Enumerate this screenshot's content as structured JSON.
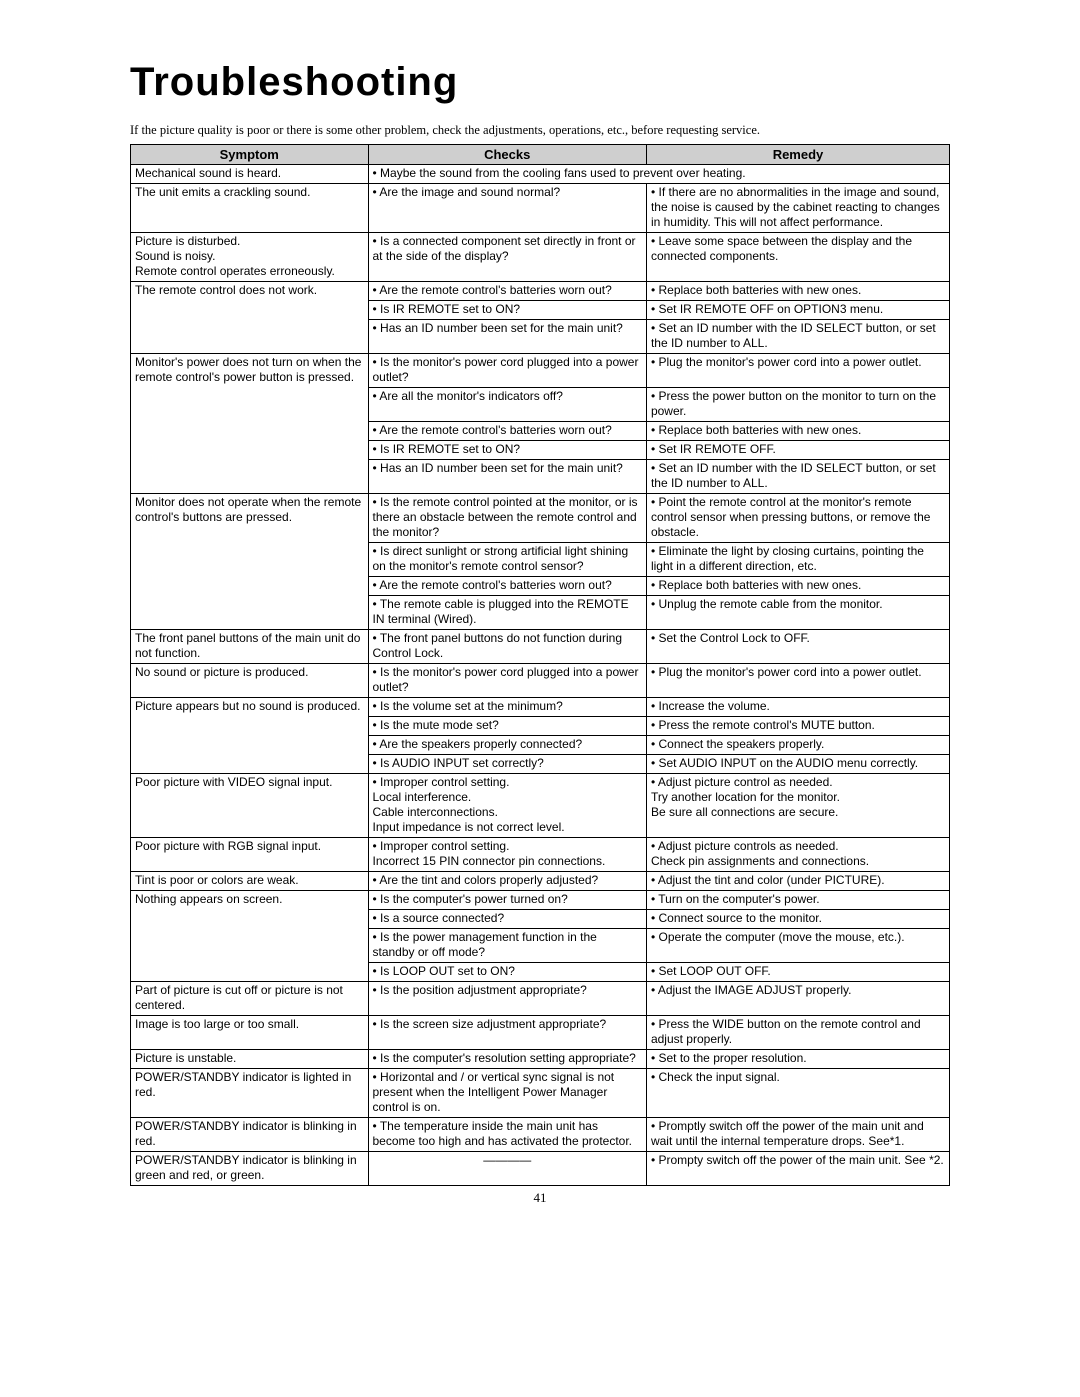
{
  "title": "Troubleshooting",
  "intro": "If the picture quality is poor or there is some other problem, check the adjustments, operations, etc., before requesting service.",
  "columns": [
    "Symptom",
    "Checks",
    "Remedy"
  ],
  "page_number": "41",
  "rows": [
    {
      "symptom": "Mechanical sound is heard.",
      "merged": "• Maybe the sound from the cooling fans used to prevent over heating."
    },
    {
      "symptom": "The unit emits a crackling sound.",
      "check": "• Are the image and sound normal?",
      "remedy": "• If there are no abnormalities in the image and sound, the noise is caused by the cabinet reacting to changes in humidity. This will not affect performance."
    },
    {
      "symptom": "Picture is disturbed.\nSound is noisy.\nRemote control operates erroneously.",
      "check": "• Is a connected component set directly in front or at the side of the display?",
      "remedy": "• Leave some space between the display and the connected components."
    },
    {
      "symptom": "The remote control does not work.",
      "sub": [
        {
          "check": "• Are the remote control's batteries worn out?",
          "remedy": "• Replace both batteries with new ones."
        },
        {
          "check": "• Is IR REMOTE set to ON?",
          "remedy": "• Set IR REMOTE OFF on OPTION3 menu."
        },
        {
          "check": "• Has an ID number been set for the main unit?",
          "remedy": "• Set an ID number with the ID SELECT button, or set the ID number to ALL."
        }
      ]
    },
    {
      "symptom": "Monitor's power does not turn on when the remote control's power button is pressed.",
      "sub": [
        {
          "check": "• Is the monitor's power cord plugged into a power outlet?",
          "remedy": "• Plug the monitor's power cord into a power outlet."
        },
        {
          "check": "• Are all the monitor's indicators off?",
          "remedy": "• Press the power button on the monitor to turn on the power."
        },
        {
          "check": "• Are the remote control's batteries worn out?",
          "remedy": "• Replace both batteries with new ones."
        },
        {
          "check": "• Is IR REMOTE set to ON?",
          "remedy": "• Set IR REMOTE OFF."
        },
        {
          "check": "• Has an ID number been set for the main unit?",
          "remedy": "• Set an ID number with the ID SELECT button, or set the ID number to ALL."
        }
      ]
    },
    {
      "symptom": "Monitor does not operate when the remote control's buttons are pressed.",
      "sub": [
        {
          "check": "• Is the remote control pointed at the monitor, or is there an obstacle between the remote control and the monitor?",
          "remedy": "• Point the remote control at the monitor's remote control sensor when pressing buttons, or remove the obstacle."
        },
        {
          "check": "• Is direct sunlight or strong artificial light shining on the monitor's remote control sensor?",
          "remedy": "• Eliminate the light by closing curtains, pointing the light in a different direction, etc."
        },
        {
          "check": "• Are the remote control's batteries worn out?",
          "remedy": "• Replace both batteries with new ones."
        },
        {
          "check": "• The remote cable is plugged into the REMOTE IN terminal (Wired).",
          "remedy": "• Unplug the remote cable from the monitor."
        }
      ]
    },
    {
      "symptom": "The front panel buttons of the main unit do not function.",
      "check": "• The front panel buttons do not function during Control Lock.",
      "remedy": "• Set the Control Lock to OFF."
    },
    {
      "symptom": "No sound or picture is produced.",
      "check": "• Is the monitor's power cord plugged into a power outlet?",
      "remedy": "• Plug the monitor's power cord into a power outlet."
    },
    {
      "symptom": "Picture appears but no sound is produced.",
      "sub": [
        {
          "check": "• Is the volume set at the minimum?",
          "remedy": "• Increase the volume."
        },
        {
          "check": "• Is the mute mode set?",
          "remedy": "• Press the remote control's MUTE button."
        },
        {
          "check": "• Are the speakers properly connected?",
          "remedy": "• Connect the speakers properly."
        },
        {
          "check": "• Is AUDIO INPUT set correctly?",
          "remedy": "• Set AUDIO INPUT on the AUDIO menu correctly."
        }
      ]
    },
    {
      "symptom": "Poor picture with VIDEO signal input.",
      "check": "• Improper control setting.\nLocal interference.\nCable interconnections.\nInput impedance is not correct level.",
      "remedy": "• Adjust picture control as needed.\nTry another location for the monitor.\nBe sure all connections are secure."
    },
    {
      "symptom": "Poor picture with RGB signal input.",
      "check": "• Improper control setting.\nIncorrect 15 PIN connector pin connections.",
      "remedy": "• Adjust picture controls as needed.\nCheck pin assignments and connections."
    },
    {
      "symptom": "Tint is poor or colors are weak.",
      "check": "• Are the tint and colors properly adjusted?",
      "remedy": "• Adjust the tint and color (under PICTURE)."
    },
    {
      "symptom": "Nothing appears on screen.",
      "sub": [
        {
          "check": "• Is the computer's power turned on?",
          "remedy": "• Turn on the computer's power."
        },
        {
          "check": "• Is a source connected?",
          "remedy": "• Connect source to the monitor."
        },
        {
          "check": "• Is the power management function in the standby or off mode?",
          "remedy": "• Operate the computer (move the mouse, etc.)."
        },
        {
          "check": "• Is LOOP OUT set to ON?",
          "remedy": "• Set LOOP OUT OFF."
        }
      ]
    },
    {
      "symptom": "Part of picture is cut off or picture is not centered.",
      "check": "• Is the position adjustment appropriate?",
      "remedy": "• Adjust the IMAGE ADJUST properly."
    },
    {
      "symptom": "Image is too large or too small.",
      "check": "• Is the screen size adjustment appropriate?",
      "remedy": "• Press the WIDE button on the remote control and adjust properly."
    },
    {
      "symptom": "Picture is unstable.",
      "check": "• Is the computer's resolution setting appropriate?",
      "remedy": "• Set to the proper resolution."
    },
    {
      "symptom": "POWER/STANDBY indicator is lighted in red.",
      "check": "• Horizontal and / or vertical sync signal is not present when the Intelligent Power Manager control is on.",
      "remedy": "• Check the input signal."
    },
    {
      "symptom": "POWER/STANDBY indicator is blinking in red.",
      "check": "• The temperature inside the main unit has become too high and has activated the protector.",
      "remedy": "• Promptly switch off the power of the main unit and wait until the internal temperature drops. See*1."
    },
    {
      "symptom": "POWER/STANDBY indicator is blinking in green and red, or green.",
      "check": "__BLANK__",
      "remedy": "• Prompty switch off the power of the main unit. See *2."
    }
  ]
}
